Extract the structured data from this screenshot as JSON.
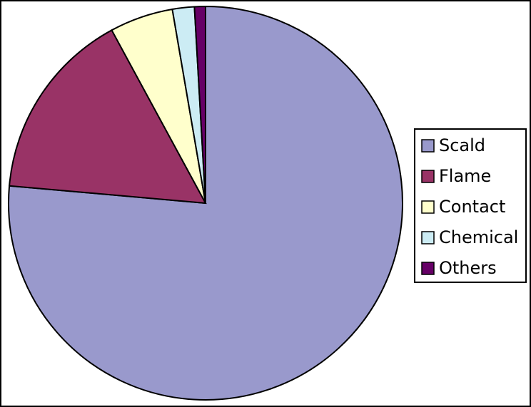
{
  "chart_data": {
    "type": "pie",
    "categories": [
      "Scald",
      "Flame",
      "Contact",
      "Chemical",
      "Others"
    ],
    "values": [
      76.4,
      15.7,
      5.2,
      1.8,
      0.9
    ],
    "colors": [
      "#9999cc",
      "#993366",
      "#ffffcc",
      "#ccecf4",
      "#660066"
    ],
    "legend": "right"
  }
}
